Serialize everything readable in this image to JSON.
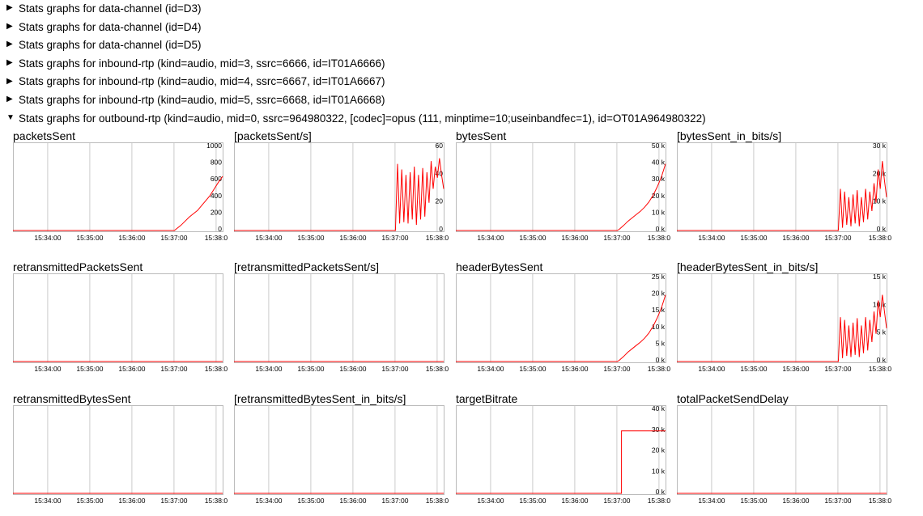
{
  "summaries": [
    {
      "label": "Stats graphs for data-channel (id=D3)",
      "open": false
    },
    {
      "label": "Stats graphs for data-channel (id=D4)",
      "open": false
    },
    {
      "label": "Stats graphs for data-channel (id=D5)",
      "open": false
    },
    {
      "label": "Stats graphs for inbound-rtp (kind=audio, mid=3, ssrc=6666, id=IT01A6666)",
      "open": false
    },
    {
      "label": "Stats graphs for inbound-rtp (kind=audio, mid=4, ssrc=6667, id=IT01A6667)",
      "open": false
    },
    {
      "label": "Stats graphs for inbound-rtp (kind=audio, mid=5, ssrc=6668, id=IT01A6668)",
      "open": false
    },
    {
      "label": "Stats graphs for outbound-rtp (kind=audio, mid=0, ssrc=964980322, [codec]=opus (111, minptime=10;useinbandfec=1), id=OT01A964980322)",
      "open": true
    }
  ],
  "colors": {
    "line": "#ff0000",
    "grid": "#cccccc",
    "frame": "#bbbbbb"
  },
  "time_ticks": [
    "15:34:00",
    "15:35:00",
    "15:36:00",
    "15:37:00",
    "15:38:0"
  ],
  "graphs": [
    {
      "title": "packetsSent",
      "yticks": [
        "1000",
        "800",
        "600",
        "400",
        "200",
        "0"
      ],
      "ymax": 1000,
      "series": [
        [
          0,
          0
        ],
        [
          0.77,
          0
        ],
        [
          0.78,
          20
        ],
        [
          0.8,
          60
        ],
        [
          0.82,
          110
        ],
        [
          0.84,
          160
        ],
        [
          0.86,
          200
        ],
        [
          0.88,
          240
        ],
        [
          0.9,
          300
        ],
        [
          0.92,
          360
        ],
        [
          0.94,
          420
        ],
        [
          0.96,
          500
        ],
        [
          0.98,
          580
        ],
        [
          1.0,
          650
        ]
      ]
    },
    {
      "title": "[packetsSent/s]",
      "yticks": [
        "60",
        "40",
        "20",
        "0"
      ],
      "ymax": 60,
      "series": [
        [
          0,
          0
        ],
        [
          0.77,
          0
        ],
        [
          0.78,
          48
        ],
        [
          0.79,
          5
        ],
        [
          0.8,
          44
        ],
        [
          0.81,
          6
        ],
        [
          0.82,
          40
        ],
        [
          0.83,
          5
        ],
        [
          0.84,
          42
        ],
        [
          0.85,
          8
        ],
        [
          0.86,
          46
        ],
        [
          0.87,
          4
        ],
        [
          0.88,
          40
        ],
        [
          0.89,
          8
        ],
        [
          0.9,
          45
        ],
        [
          0.91,
          10
        ],
        [
          0.92,
          42
        ],
        [
          0.93,
          20
        ],
        [
          0.94,
          50
        ],
        [
          0.95,
          30
        ],
        [
          0.96,
          46
        ],
        [
          0.97,
          38
        ],
        [
          0.98,
          52
        ],
        [
          0.99,
          40
        ],
        [
          1.0,
          30
        ]
      ]
    },
    {
      "title": "bytesSent",
      "yticks": [
        "50 k",
        "40 k",
        "30 k",
        "20 k",
        "10 k",
        "0 k"
      ],
      "ymax": 50000,
      "series": [
        [
          0,
          0
        ],
        [
          0.77,
          0
        ],
        [
          0.78,
          800
        ],
        [
          0.8,
          3000
        ],
        [
          0.82,
          5500
        ],
        [
          0.84,
          7500
        ],
        [
          0.86,
          9500
        ],
        [
          0.88,
          11500
        ],
        [
          0.9,
          14000
        ],
        [
          0.92,
          17000
        ],
        [
          0.94,
          21000
        ],
        [
          0.96,
          26000
        ],
        [
          0.98,
          32000
        ],
        [
          1.0,
          40000
        ]
      ]
    },
    {
      "title": "[bytesSent_in_bits/s]",
      "yticks": [
        "30 k",
        "20 k",
        "10 k",
        "0 k"
      ],
      "ymax": 30000,
      "series": [
        [
          0,
          0
        ],
        [
          0.77,
          0
        ],
        [
          0.78,
          15000
        ],
        [
          0.79,
          1000
        ],
        [
          0.8,
          14000
        ],
        [
          0.81,
          2000
        ],
        [
          0.82,
          12000
        ],
        [
          0.83,
          1500
        ],
        [
          0.84,
          13000
        ],
        [
          0.85,
          2500
        ],
        [
          0.86,
          14500
        ],
        [
          0.87,
          1500
        ],
        [
          0.88,
          12000
        ],
        [
          0.89,
          3000
        ],
        [
          0.9,
          15000
        ],
        [
          0.91,
          4000
        ],
        [
          0.92,
          14000
        ],
        [
          0.93,
          7000
        ],
        [
          0.94,
          17000
        ],
        [
          0.95,
          10000
        ],
        [
          0.96,
          22000
        ],
        [
          0.97,
          15000
        ],
        [
          0.98,
          25000
        ],
        [
          0.99,
          18000
        ],
        [
          1.0,
          12000
        ]
      ]
    },
    {
      "title": "retransmittedPacketsSent",
      "yticks": [],
      "ymax": 1,
      "series": [
        [
          0,
          0
        ],
        [
          1.0,
          0
        ]
      ]
    },
    {
      "title": "[retransmittedPacketsSent/s]",
      "yticks": [],
      "ymax": 1,
      "series": [
        [
          0,
          0
        ],
        [
          1.0,
          0
        ]
      ]
    },
    {
      "title": "headerBytesSent",
      "yticks": [
        "25 k",
        "20 k",
        "15 k",
        "10 k",
        "5 k",
        "0 k"
      ],
      "ymax": 25000,
      "series": [
        [
          0,
          0
        ],
        [
          0.77,
          0
        ],
        [
          0.78,
          400
        ],
        [
          0.8,
          1500
        ],
        [
          0.82,
          2800
        ],
        [
          0.84,
          3800
        ],
        [
          0.86,
          4800
        ],
        [
          0.88,
          5800
        ],
        [
          0.9,
          7000
        ],
        [
          0.92,
          8500
        ],
        [
          0.94,
          10500
        ],
        [
          0.96,
          13000
        ],
        [
          0.98,
          16000
        ],
        [
          1.0,
          20000
        ]
      ]
    },
    {
      "title": "[headerBytesSent_in_bits/s]",
      "yticks": [
        "15 k",
        "10 k",
        "5 k",
        "0 k"
      ],
      "ymax": 15000,
      "series": [
        [
          0,
          0
        ],
        [
          0.77,
          0
        ],
        [
          0.78,
          8000
        ],
        [
          0.79,
          600
        ],
        [
          0.8,
          7500
        ],
        [
          0.81,
          1000
        ],
        [
          0.82,
          6500
        ],
        [
          0.83,
          800
        ],
        [
          0.84,
          7000
        ],
        [
          0.85,
          1200
        ],
        [
          0.86,
          7800
        ],
        [
          0.87,
          800
        ],
        [
          0.88,
          6500
        ],
        [
          0.89,
          1500
        ],
        [
          0.9,
          8000
        ],
        [
          0.91,
          2000
        ],
        [
          0.92,
          7500
        ],
        [
          0.93,
          3500
        ],
        [
          0.94,
          9000
        ],
        [
          0.95,
          5000
        ],
        [
          0.96,
          11000
        ],
        [
          0.97,
          8000
        ],
        [
          0.98,
          12000
        ],
        [
          0.99,
          9000
        ],
        [
          1.0,
          6000
        ]
      ]
    },
    {
      "title": "retransmittedBytesSent",
      "yticks": [],
      "ymax": 1,
      "series": [
        [
          0,
          0
        ],
        [
          1.0,
          0
        ]
      ]
    },
    {
      "title": "[retransmittedBytesSent_in_bits/s]",
      "yticks": [],
      "ymax": 1,
      "series": [
        [
          0,
          0
        ],
        [
          1.0,
          0
        ]
      ]
    },
    {
      "title": "targetBitrate",
      "yticks": [
        "40 k",
        "30 k",
        "20 k",
        "10 k",
        "0 k"
      ],
      "ymax": 40000,
      "series": [
        [
          0,
          0
        ],
        [
          0.79,
          0
        ],
        [
          0.79,
          30000
        ],
        [
          1.0,
          30000
        ]
      ]
    },
    {
      "title": "totalPacketSendDelay",
      "yticks": [],
      "ymax": 1,
      "series": [
        [
          0,
          0
        ],
        [
          1.0,
          0
        ]
      ]
    }
  ]
}
